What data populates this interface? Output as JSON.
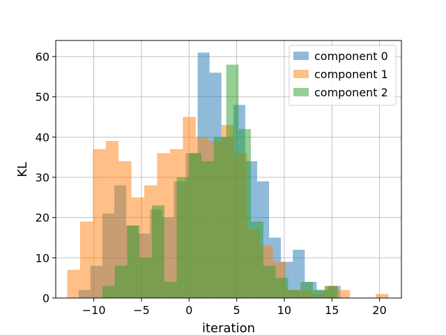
{
  "chart_data": {
    "type": "histogram",
    "title": "",
    "xlabel": "iteration",
    "ylabel": "KL",
    "xlim": [
      -14.0,
      22.3
    ],
    "ylim": [
      0,
      64
    ],
    "xticks": [
      -10,
      -5,
      0,
      5,
      10,
      15,
      20
    ],
    "xtick_labels": [
      "−10",
      "−5",
      "0",
      "5",
      "10",
      "15",
      "20"
    ],
    "yticks": [
      0,
      10,
      20,
      30,
      40,
      50,
      60
    ],
    "ytick_labels": [
      "0",
      "10",
      "20",
      "30",
      "40",
      "50",
      "60"
    ],
    "grid": true,
    "legend_position": "top-right",
    "series": [
      {
        "name": "component 0",
        "color": "#1f77b4",
        "opacity": 0.5,
        "bins": [
          [
            -11.6,
            -10.35,
            2
          ],
          [
            -10.35,
            -9.1,
            8
          ],
          [
            -9.1,
            -7.85,
            21
          ],
          [
            -7.85,
            -6.6,
            28
          ],
          [
            -6.6,
            -5.35,
            18
          ],
          [
            -5.35,
            -4.1,
            16
          ],
          [
            -4.1,
            -2.85,
            22
          ],
          [
            -2.85,
            -1.6,
            20
          ],
          [
            -1.6,
            -0.35,
            29
          ],
          [
            -0.35,
            0.9,
            36
          ],
          [
            0.9,
            2.15,
            61
          ],
          [
            2.15,
            3.4,
            56
          ],
          [
            3.4,
            4.65,
            40
          ],
          [
            4.65,
            5.9,
            48
          ],
          [
            5.9,
            7.15,
            34
          ],
          [
            7.15,
            8.4,
            29
          ],
          [
            8.4,
            9.65,
            15
          ],
          [
            9.65,
            10.9,
            9
          ],
          [
            10.9,
            12.15,
            12
          ],
          [
            12.15,
            13.4,
            4
          ],
          [
            13.4,
            14.65,
            2
          ],
          [
            14.65,
            15.9,
            3
          ]
        ]
      },
      {
        "name": "component 1",
        "color": "#ff7f0e",
        "opacity": 0.5,
        "bins": [
          [
            -12.8,
            -11.45,
            7
          ],
          [
            -11.45,
            -10.1,
            19
          ],
          [
            -10.1,
            -8.75,
            37
          ],
          [
            -8.75,
            -7.4,
            39
          ],
          [
            -7.4,
            -6.05,
            34
          ],
          [
            -6.05,
            -4.7,
            25
          ],
          [
            -4.7,
            -3.35,
            28
          ],
          [
            -3.35,
            -2.0,
            36
          ],
          [
            -2.0,
            -0.65,
            37
          ],
          [
            -0.65,
            0.7,
            45
          ],
          [
            0.7,
            2.05,
            40
          ],
          [
            2.05,
            3.4,
            39
          ],
          [
            3.4,
            4.75,
            43
          ],
          [
            4.75,
            6.1,
            36
          ],
          [
            6.1,
            7.45,
            17
          ],
          [
            7.45,
            8.8,
            13
          ],
          [
            8.8,
            10.15,
            9
          ],
          [
            10.15,
            11.5,
            2
          ],
          [
            11.5,
            12.85,
            2
          ],
          [
            12.85,
            14.2,
            1
          ],
          [
            14.2,
            15.55,
            3
          ],
          [
            15.55,
            16.9,
            2
          ],
          [
            16.9,
            18.25,
            0
          ],
          [
            18.25,
            19.6,
            0
          ],
          [
            19.6,
            20.95,
            1
          ]
        ]
      },
      {
        "name": "component 2",
        "color": "#2ca02c",
        "opacity": 0.5,
        "bins": [
          [
            -9.1,
            -7.8,
            3
          ],
          [
            -7.8,
            -6.5,
            8
          ],
          [
            -6.5,
            -5.2,
            18
          ],
          [
            -5.2,
            -3.9,
            10
          ],
          [
            -3.9,
            -2.6,
            23
          ],
          [
            -2.6,
            -1.3,
            4
          ],
          [
            -1.3,
            0.0,
            30
          ],
          [
            0.0,
            1.3,
            36
          ],
          [
            1.3,
            2.6,
            34
          ],
          [
            2.6,
            3.9,
            40
          ],
          [
            3.9,
            5.2,
            58
          ],
          [
            5.2,
            6.5,
            42
          ],
          [
            6.5,
            7.8,
            19
          ],
          [
            7.8,
            9.1,
            8
          ],
          [
            9.1,
            10.4,
            5
          ],
          [
            10.4,
            11.7,
            2
          ],
          [
            11.7,
            13.0,
            4
          ],
          [
            13.0,
            14.3,
            2
          ],
          [
            14.3,
            15.6,
            3
          ]
        ]
      }
    ]
  }
}
